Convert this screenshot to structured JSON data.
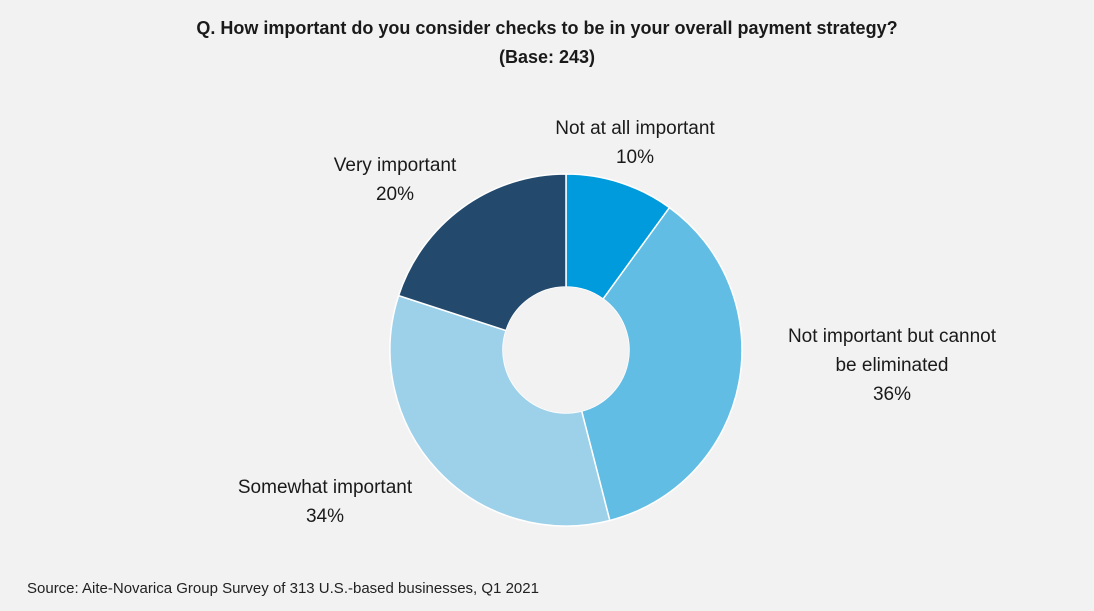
{
  "chart_data": {
    "type": "pie",
    "variant": "donut",
    "title_lines": [
      "Q. How important do you consider checks to be in your overall payment strategy?",
      "(Base: 243)"
    ],
    "slices": [
      {
        "label_lines": [
          "Not at all important"
        ],
        "value": 10,
        "value_label": "10%",
        "color": "#009bdc"
      },
      {
        "label_lines": [
          "Not important but cannot",
          "be eliminated"
        ],
        "value": 36,
        "value_label": "36%",
        "color": "#62bde4"
      },
      {
        "label_lines": [
          "Somewhat important"
        ],
        "value": 34,
        "value_label": "34%",
        "color": "#9dd1ea"
      },
      {
        "label_lines": [
          "Very important"
        ],
        "value": 20,
        "value_label": "20%",
        "color": "#234a6d"
      }
    ],
    "legend": "none"
  },
  "footer": {
    "source": "Source: Aite-Novarica Group Survey of 313 U.S.-based businesses, Q1 2021"
  }
}
